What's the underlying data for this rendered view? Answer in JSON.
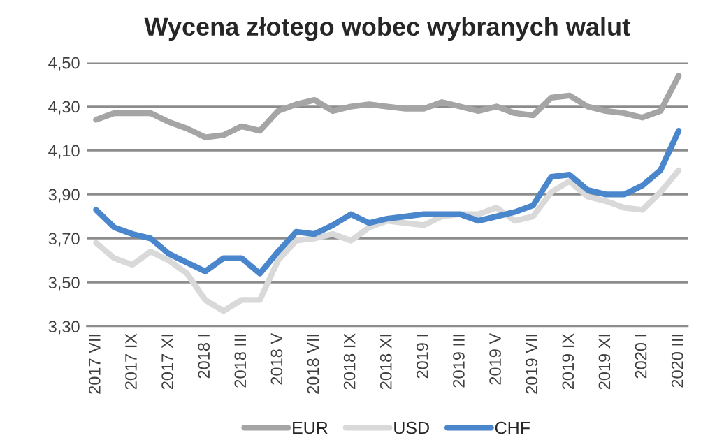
{
  "chart_data": {
    "type": "line",
    "title": "Wycena złotego wobec wybranych walut",
    "categories": [
      "2017 VII",
      null,
      "2017 IX",
      null,
      "2017 XI",
      null,
      "2018 I",
      null,
      "2018 III",
      null,
      "2018 V",
      null,
      "2018 VII",
      null,
      "2018 IX",
      null,
      "2018 XI",
      null,
      "2019 I",
      null,
      "2019 III",
      null,
      "2019 V",
      null,
      "2019 VII",
      null,
      "2019 IX",
      null,
      "2019 XI",
      null,
      "2020 I",
      null,
      "2020 III"
    ],
    "series": [
      {
        "name": "EUR",
        "color": "#a5a5a5",
        "values": [
          4.24,
          4.27,
          4.27,
          4.27,
          4.23,
          4.2,
          4.16,
          4.17,
          4.21,
          4.19,
          4.28,
          4.31,
          4.33,
          4.28,
          4.3,
          4.31,
          4.3,
          4.29,
          4.29,
          4.32,
          4.3,
          4.28,
          4.3,
          4.27,
          4.26,
          4.34,
          4.35,
          4.3,
          4.28,
          4.27,
          4.25,
          4.28,
          4.44
        ]
      },
      {
        "name": "USD",
        "color": "#d9d9d9",
        "values": [
          3.68,
          3.61,
          3.58,
          3.64,
          3.6,
          3.54,
          3.42,
          3.37,
          3.42,
          3.42,
          3.6,
          3.69,
          3.7,
          3.72,
          3.69,
          3.75,
          3.78,
          3.77,
          3.76,
          3.8,
          3.81,
          3.81,
          3.84,
          3.78,
          3.8,
          3.91,
          3.96,
          3.89,
          3.87,
          3.84,
          3.83,
          3.91,
          4.01
        ]
      },
      {
        "name": "CHF",
        "color": "#4a86cc",
        "values": [
          3.83,
          3.75,
          3.72,
          3.7,
          3.63,
          3.59,
          3.55,
          3.61,
          3.61,
          3.54,
          3.64,
          3.73,
          3.72,
          3.76,
          3.81,
          3.77,
          3.79,
          3.8,
          3.81,
          3.81,
          3.81,
          3.78,
          3.8,
          3.82,
          3.85,
          3.98,
          3.99,
          3.92,
          3.9,
          3.9,
          3.94,
          4.01,
          4.19
        ]
      }
    ],
    "ylim": [
      3.3,
      4.5
    ],
    "yticks": [
      {
        "value": 3.3,
        "label": "3,30"
      },
      {
        "value": 3.5,
        "label": "3,50"
      },
      {
        "value": 3.7,
        "label": "3,70"
      },
      {
        "value": 3.9,
        "label": "3,90"
      },
      {
        "value": 4.1,
        "label": "4,10"
      },
      {
        "value": 4.3,
        "label": "4,30"
      },
      {
        "value": 4.5,
        "label": "4,50"
      }
    ],
    "grid": "y",
    "legend": "bottom",
    "marker": "none",
    "line_style": "solid"
  }
}
